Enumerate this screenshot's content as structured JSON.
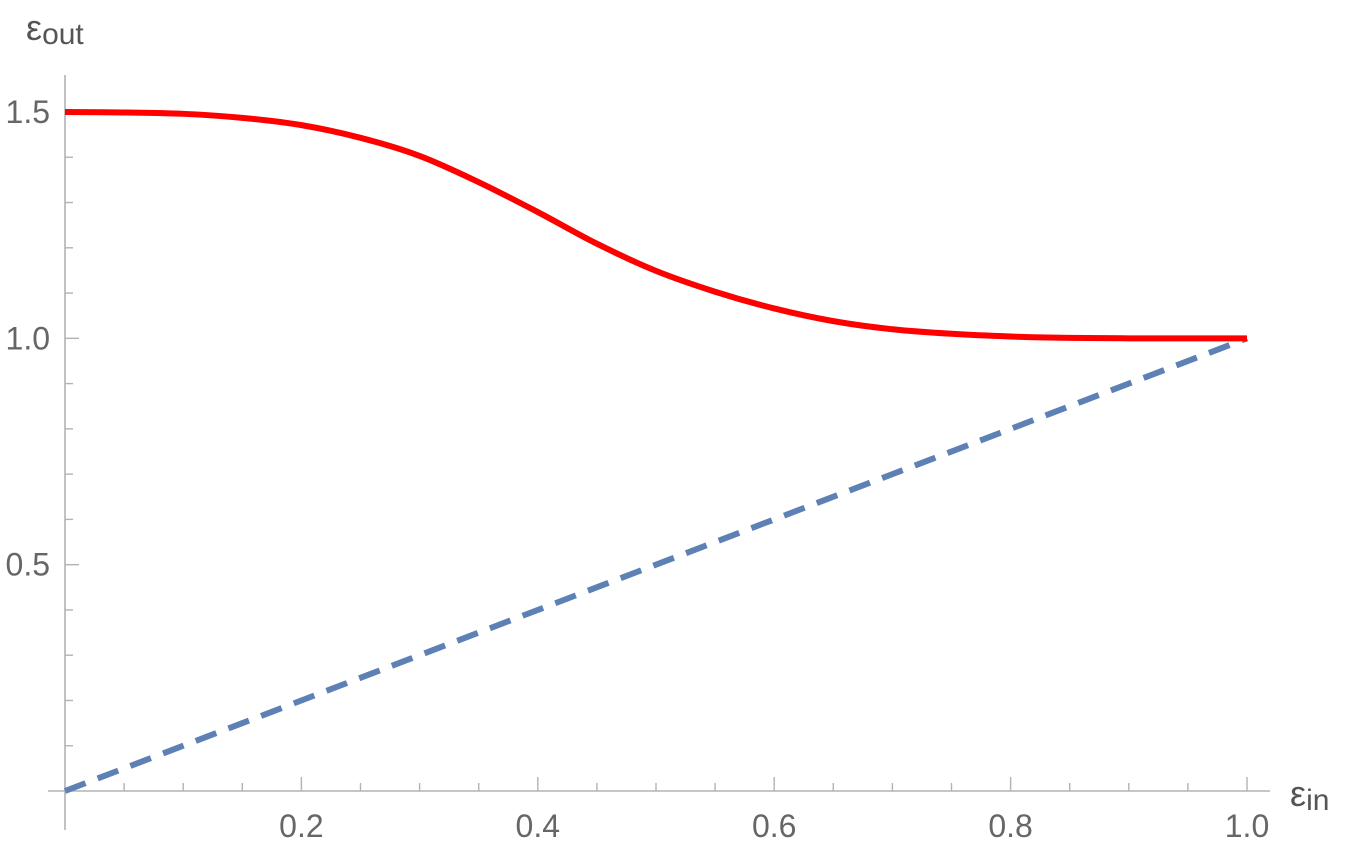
{
  "chart_data": {
    "type": "line",
    "title": "",
    "xlabel": {
      "base": "ε",
      "sub": "in"
    },
    "ylabel": {
      "base": "ε",
      "sub": "out"
    },
    "xlim": [
      0,
      1.0
    ],
    "ylim": [
      0,
      1.5
    ],
    "x_ticks_major": [
      "0.2",
      "0.4",
      "0.6",
      "0.8",
      "1.0"
    ],
    "y_ticks_major": [
      "0.5",
      "1.0",
      "1.5"
    ],
    "grid": false,
    "legend": "none",
    "series": [
      {
        "style": "solid",
        "color": "#ff0000",
        "x": [
          0.0,
          0.05,
          0.1,
          0.15,
          0.2,
          0.25,
          0.3,
          0.35,
          0.4,
          0.45,
          0.5,
          0.55,
          0.6,
          0.65,
          0.7,
          0.75,
          0.8,
          0.85,
          0.9,
          0.95,
          1.0
        ],
        "y": [
          1.5,
          1.499,
          1.496,
          1.487,
          1.471,
          1.443,
          1.403,
          1.345,
          1.279,
          1.209,
          1.149,
          1.103,
          1.066,
          1.038,
          1.02,
          1.01,
          1.004,
          1.001,
          1.0,
          1.0,
          1.0
        ]
      },
      {
        "style": "dashed",
        "color": "#5e81b5",
        "x": [
          0.0,
          1.0
        ],
        "y": [
          0.0,
          1.0
        ]
      }
    ]
  }
}
